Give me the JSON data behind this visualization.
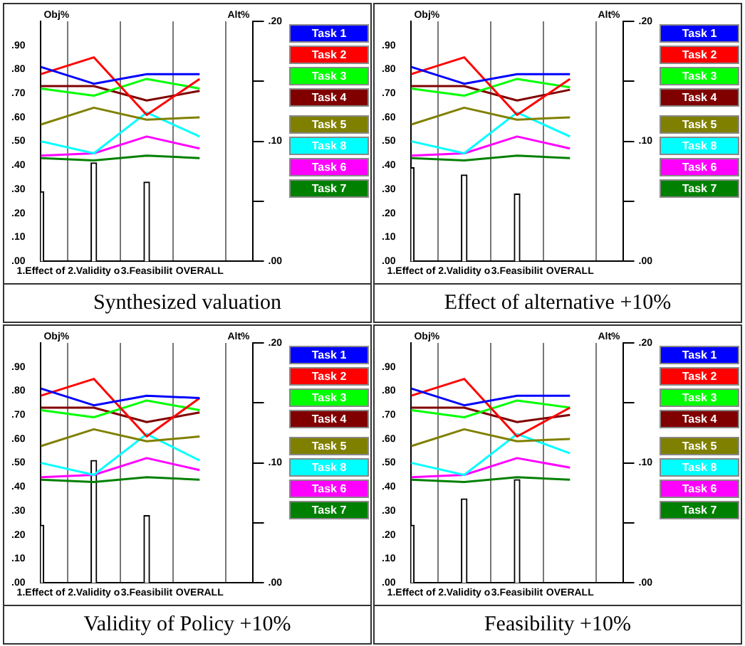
{
  "chart_data": [
    {
      "type": "line",
      "title": "Synthesized valuation",
      "ylabel": "Obj%",
      "y2label": "Alt%",
      "categories": [
        "1.Effect of",
        "2.Validity o",
        "3.Feasibilit",
        "OVERALL"
      ],
      "grid": "x",
      "legend": "right",
      "ylim": [
        0,
        1
      ],
      "yticks": [
        {
          "value": 0,
          "label": ".00"
        },
        {
          "value": 0.1,
          "label": ".10"
        },
        {
          "value": 0.2,
          "label": ".20"
        },
        {
          "value": 0.3,
          "label": ".30"
        },
        {
          "value": 0.4,
          "label": ".40"
        },
        {
          "value": 0.5,
          "label": ".50"
        },
        {
          "value": 0.6,
          "label": ".60"
        },
        {
          "value": 0.7,
          "label": ".70"
        },
        {
          "value": 0.8,
          "label": ".80"
        },
        {
          "value": 0.9,
          "label": ".90"
        }
      ],
      "y2lim": [
        0,
        0.2
      ],
      "y2ticks": [
        {
          "value": 0,
          "label": ".00"
        },
        {
          "value": 0.05,
          "label": null
        },
        {
          "value": 0.1,
          "label": ".10"
        },
        {
          "value": 0.15,
          "label": null
        },
        {
          "value": 0.2,
          "label": ".20"
        }
      ],
      "series": [
        {
          "type": "bar",
          "color": "#ffffff",
          "values": [
            0.29,
            0.41,
            0.33,
            null
          ]
        },
        {
          "name": "Task 1",
          "color": "#0000ff",
          "axis": "y2",
          "values": [
            0.162,
            0.148,
            0.156,
            0.156
          ]
        },
        {
          "name": "Task 2",
          "color": "#ff0000",
          "axis": "y2",
          "values": [
            0.156,
            0.17,
            0.122,
            0.152
          ]
        },
        {
          "name": "Task 3",
          "color": "#00ff00",
          "axis": "y2",
          "values": [
            0.144,
            0.138,
            0.152,
            0.144
          ]
        },
        {
          "name": "Task 4",
          "color": "#800000",
          "axis": "y2",
          "values": [
            0.146,
            0.146,
            0.134,
            0.142
          ]
        },
        {
          "name": "Task 5",
          "color": "#808000",
          "axis": "y2",
          "values": [
            0.114,
            0.128,
            0.118,
            0.12
          ]
        },
        {
          "name": "Task 8",
          "color": "#00ffff",
          "axis": "y2",
          "values": [
            0.1,
            0.09,
            0.124,
            0.104
          ]
        },
        {
          "name": "Task 6",
          "color": "#ff00ff",
          "axis": "y2",
          "values": [
            0.088,
            0.09,
            0.104,
            0.094
          ]
        },
        {
          "name": "Task 7",
          "color": "#008000",
          "axis": "y2",
          "values": [
            0.086,
            0.084,
            0.088,
            0.086
          ]
        }
      ]
    },
    {
      "type": "line",
      "title": "Effect of alternative +10%",
      "ylabel": "Obj%",
      "y2label": "Alt%",
      "categories": [
        "1.Effect of",
        "2.Validity o",
        "3.Feasibilit",
        "OVERALL"
      ],
      "grid": "x",
      "legend": "right",
      "ylim": [
        0,
        1
      ],
      "yticks": [
        {
          "value": 0,
          "label": ".00"
        },
        {
          "value": 0.1,
          "label": ".10"
        },
        {
          "value": 0.2,
          "label": ".20"
        },
        {
          "value": 0.3,
          "label": ".30"
        },
        {
          "value": 0.4,
          "label": ".40"
        },
        {
          "value": 0.5,
          "label": ".50"
        },
        {
          "value": 0.6,
          "label": ".60"
        },
        {
          "value": 0.7,
          "label": ".70"
        },
        {
          "value": 0.8,
          "label": ".80"
        },
        {
          "value": 0.9,
          "label": ".90"
        }
      ],
      "y2lim": [
        0,
        0.2
      ],
      "y2ticks": [
        {
          "value": 0,
          "label": ".00"
        },
        {
          "value": 0.05,
          "label": null
        },
        {
          "value": 0.1,
          "label": ".10"
        },
        {
          "value": 0.15,
          "label": null
        },
        {
          "value": 0.2,
          "label": ".20"
        }
      ],
      "series": [
        {
          "type": "bar",
          "color": "#ffffff",
          "values": [
            0.39,
            0.36,
            0.28,
            null
          ]
        },
        {
          "name": "Task 1",
          "color": "#0000ff",
          "axis": "y2",
          "values": [
            0.162,
            0.148,
            0.156,
            0.156
          ]
        },
        {
          "name": "Task 2",
          "color": "#ff0000",
          "axis": "y2",
          "values": [
            0.156,
            0.17,
            0.122,
            0.152
          ]
        },
        {
          "name": "Task 3",
          "color": "#00ff00",
          "axis": "y2",
          "values": [
            0.144,
            0.138,
            0.152,
            0.145
          ]
        },
        {
          "name": "Task 4",
          "color": "#800000",
          "axis": "y2",
          "values": [
            0.146,
            0.146,
            0.134,
            0.143
          ]
        },
        {
          "name": "Task 5",
          "color": "#808000",
          "axis": "y2",
          "values": [
            0.114,
            0.128,
            0.118,
            0.12
          ]
        },
        {
          "name": "Task 8",
          "color": "#00ffff",
          "axis": "y2",
          "values": [
            0.1,
            0.09,
            0.124,
            0.104
          ]
        },
        {
          "name": "Task 6",
          "color": "#ff00ff",
          "axis": "y2",
          "values": [
            0.088,
            0.09,
            0.104,
            0.094
          ]
        },
        {
          "name": "Task 7",
          "color": "#008000",
          "axis": "y2",
          "values": [
            0.086,
            0.084,
            0.088,
            0.086
          ]
        }
      ]
    },
    {
      "type": "line",
      "title": "Validity of Policy +10%",
      "ylabel": "Obj%",
      "y2label": "Alt%",
      "categories": [
        "1.Effect of",
        "2.Validity o",
        "3.Feasibilit",
        "OVERALL"
      ],
      "grid": "x",
      "legend": "right",
      "ylim": [
        0,
        1
      ],
      "yticks": [
        {
          "value": 0,
          "label": ".00"
        },
        {
          "value": 0.1,
          "label": ".10"
        },
        {
          "value": 0.2,
          "label": ".20"
        },
        {
          "value": 0.3,
          "label": ".30"
        },
        {
          "value": 0.4,
          "label": ".40"
        },
        {
          "value": 0.5,
          "label": ".50"
        },
        {
          "value": 0.6,
          "label": ".60"
        },
        {
          "value": 0.7,
          "label": ".70"
        },
        {
          "value": 0.8,
          "label": ".80"
        },
        {
          "value": 0.9,
          "label": ".90"
        }
      ],
      "y2lim": [
        0,
        0.2
      ],
      "y2ticks": [
        {
          "value": 0,
          "label": ".00"
        },
        {
          "value": 0.05,
          "label": null
        },
        {
          "value": 0.1,
          "label": ".10"
        },
        {
          "value": 0.15,
          "label": null
        },
        {
          "value": 0.2,
          "label": ".20"
        }
      ],
      "series": [
        {
          "type": "bar",
          "color": "#ffffff",
          "values": [
            0.24,
            0.51,
            0.28,
            null
          ]
        },
        {
          "name": "Task 1",
          "color": "#0000ff",
          "axis": "y2",
          "values": [
            0.162,
            0.148,
            0.156,
            0.154
          ]
        },
        {
          "name": "Task 2",
          "color": "#ff0000",
          "axis": "y2",
          "values": [
            0.156,
            0.17,
            0.122,
            0.154
          ]
        },
        {
          "name": "Task 3",
          "color": "#00ff00",
          "axis": "y2",
          "values": [
            0.144,
            0.138,
            0.152,
            0.144
          ]
        },
        {
          "name": "Task 4",
          "color": "#800000",
          "axis": "y2",
          "values": [
            0.146,
            0.146,
            0.134,
            0.142
          ]
        },
        {
          "name": "Task 5",
          "color": "#808000",
          "axis": "y2",
          "values": [
            0.114,
            0.128,
            0.118,
            0.122
          ]
        },
        {
          "name": "Task 8",
          "color": "#00ffff",
          "axis": "y2",
          "values": [
            0.1,
            0.09,
            0.124,
            0.102
          ]
        },
        {
          "name": "Task 6",
          "color": "#ff00ff",
          "axis": "y2",
          "values": [
            0.088,
            0.09,
            0.104,
            0.094
          ]
        },
        {
          "name": "Task 7",
          "color": "#008000",
          "axis": "y2",
          "values": [
            0.086,
            0.084,
            0.088,
            0.086
          ]
        }
      ]
    },
    {
      "type": "line",
      "title": "Feasibility +10%",
      "ylabel": "Obj%",
      "y2label": "Alt%",
      "categories": [
        "1.Effect of",
        "2.Validity o",
        "3.Feasibilit",
        "OVERALL"
      ],
      "grid": "x",
      "legend": "right",
      "ylim": [
        0,
        1
      ],
      "yticks": [
        {
          "value": 0,
          "label": ".00"
        },
        {
          "value": 0.1,
          "label": ".10"
        },
        {
          "value": 0.2,
          "label": ".20"
        },
        {
          "value": 0.3,
          "label": ".30"
        },
        {
          "value": 0.4,
          "label": ".40"
        },
        {
          "value": 0.5,
          "label": ".50"
        },
        {
          "value": 0.6,
          "label": ".60"
        },
        {
          "value": 0.7,
          "label": ".70"
        },
        {
          "value": 0.8,
          "label": ".80"
        },
        {
          "value": 0.9,
          "label": ".90"
        }
      ],
      "y2lim": [
        0,
        0.2
      ],
      "y2ticks": [
        {
          "value": 0,
          "label": ".00"
        },
        {
          "value": 0.05,
          "label": null
        },
        {
          "value": 0.1,
          "label": ".10"
        },
        {
          "value": 0.15,
          "label": null
        },
        {
          "value": 0.2,
          "label": ".20"
        }
      ],
      "series": [
        {
          "type": "bar",
          "color": "#ffffff",
          "values": [
            0.24,
            0.35,
            0.43,
            null
          ]
        },
        {
          "name": "Task 1",
          "color": "#0000ff",
          "axis": "y2",
          "values": [
            0.162,
            0.148,
            0.156,
            0.156
          ]
        },
        {
          "name": "Task 2",
          "color": "#ff0000",
          "axis": "y2",
          "values": [
            0.156,
            0.17,
            0.122,
            0.146
          ]
        },
        {
          "name": "Task 3",
          "color": "#00ff00",
          "axis": "y2",
          "values": [
            0.144,
            0.138,
            0.152,
            0.146
          ]
        },
        {
          "name": "Task 4",
          "color": "#800000",
          "axis": "y2",
          "values": [
            0.146,
            0.146,
            0.134,
            0.14
          ]
        },
        {
          "name": "Task 5",
          "color": "#808000",
          "axis": "y2",
          "values": [
            0.114,
            0.128,
            0.118,
            0.12
          ]
        },
        {
          "name": "Task 8",
          "color": "#00ffff",
          "axis": "y2",
          "values": [
            0.1,
            0.09,
            0.124,
            0.108
          ]
        },
        {
          "name": "Task 6",
          "color": "#ff00ff",
          "axis": "y2",
          "values": [
            0.088,
            0.09,
            0.104,
            0.096
          ]
        },
        {
          "name": "Task 7",
          "color": "#008000",
          "axis": "y2",
          "values": [
            0.086,
            0.084,
            0.088,
            0.086
          ]
        }
      ]
    }
  ]
}
